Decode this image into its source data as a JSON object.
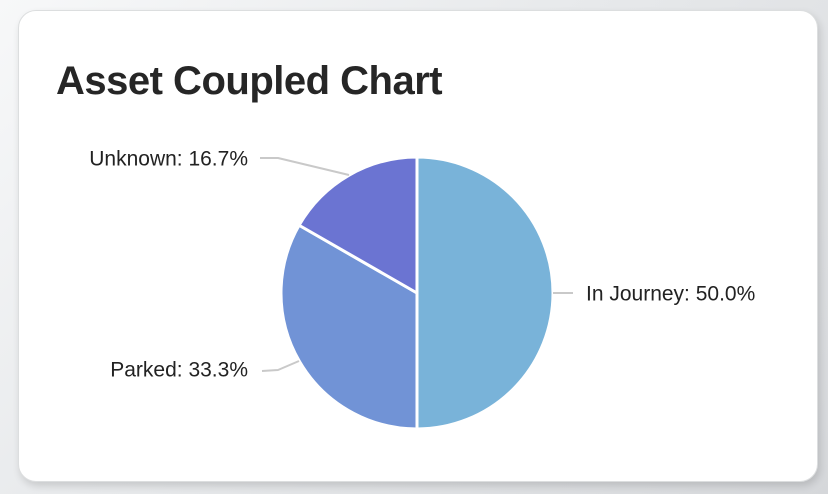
{
  "card": {
    "title": "Asset Coupled Chart"
  },
  "chart_data": {
    "type": "pie",
    "title": "Asset Coupled Chart",
    "start_angle_deg": 0,
    "direction": "clockwise",
    "radius_px": 136,
    "slice_border_color": "#ffffff",
    "leader_line_color": "#c9c9c9",
    "label_color": "#222222",
    "legend_position": "callout-labels",
    "slices": [
      {
        "name": "In Journey",
        "percent": 50.0,
        "label": "In Journey: 50.0%",
        "color": "#79b3d9"
      },
      {
        "name": "Parked",
        "percent": 33.3,
        "label": "Parked: 33.3%",
        "color": "#7193d6"
      },
      {
        "name": "Unknown",
        "percent": 16.7,
        "label": "Unknown: 16.7%",
        "color": "#6b74d2"
      }
    ]
  }
}
